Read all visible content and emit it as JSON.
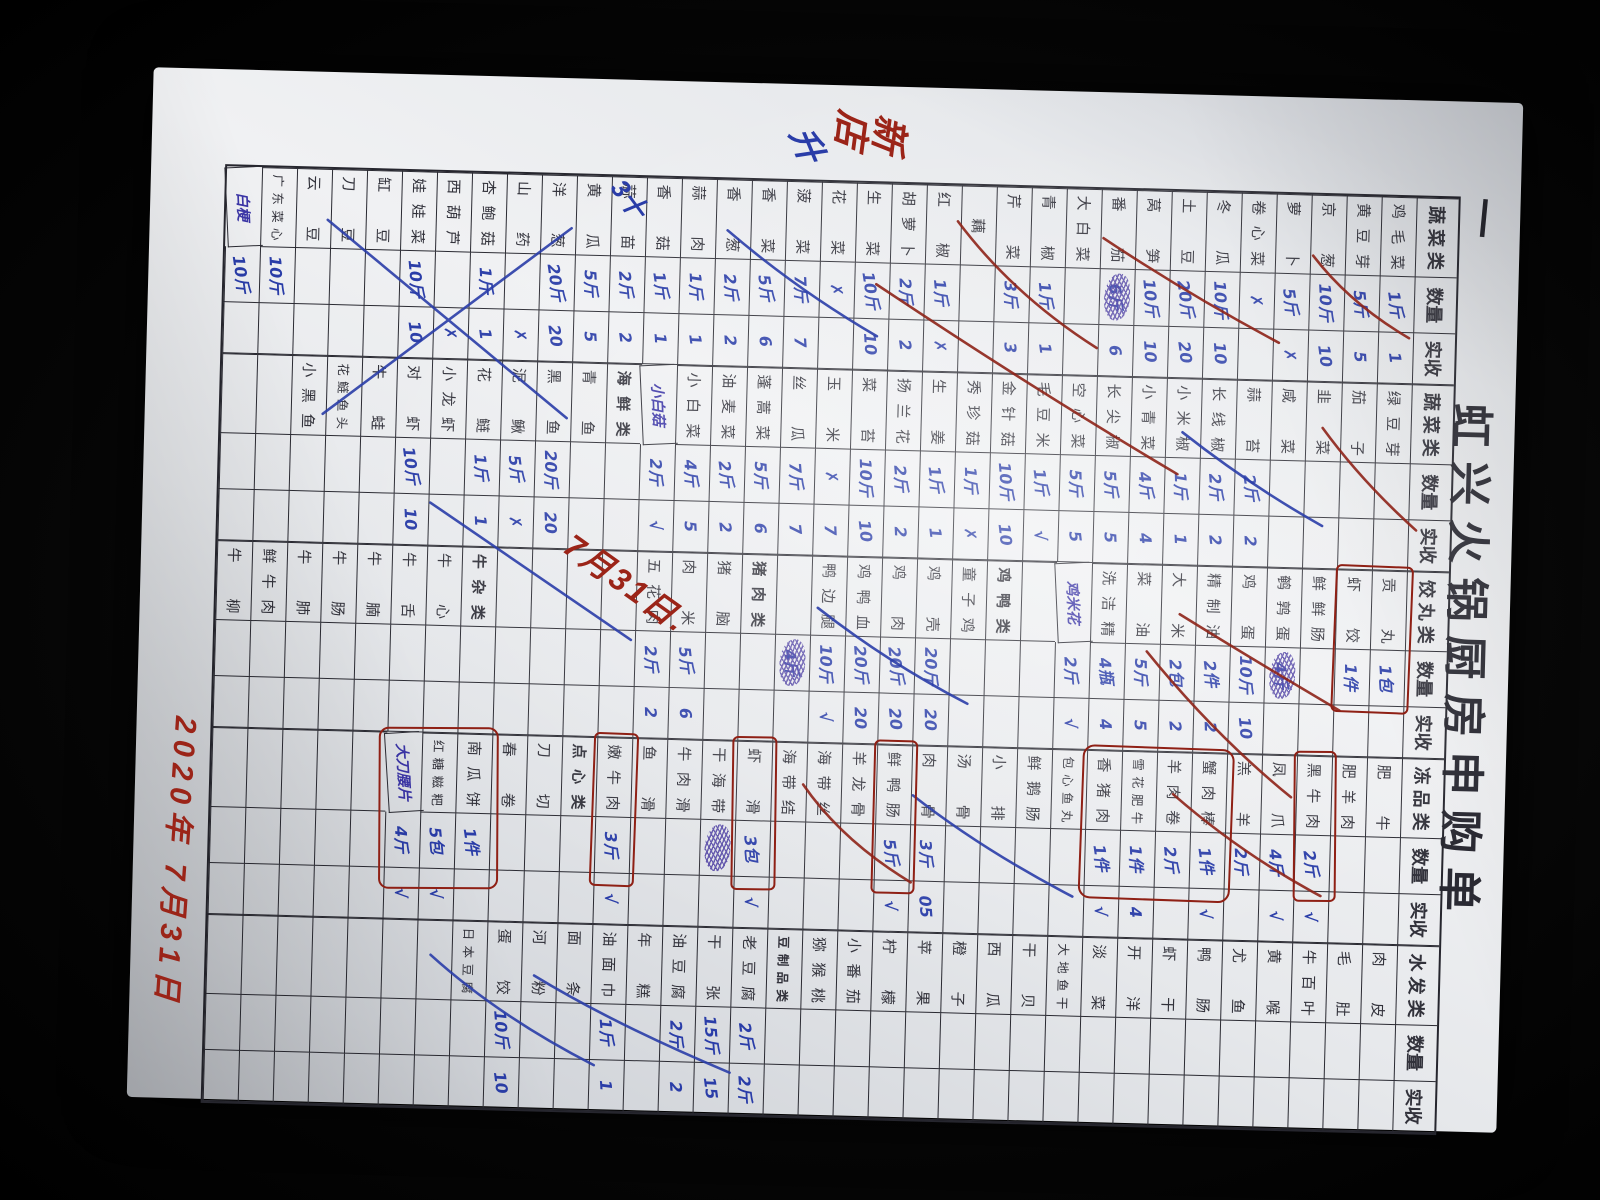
{
  "page": {
    "title": "虹兴火锅厨房申购单",
    "page_mark": "一"
  },
  "annotations": {
    "new_store_note": "新店",
    "date_diagonal": "7月31日.",
    "date_bottom": "2020年 7月31日",
    "pen_mark_1": "升",
    "pen_mark_2": "3十"
  },
  "colors": {
    "pen_blue": "#2a3da8",
    "pen_red": "#9b2418",
    "pen_purple": "#4a3aa0",
    "ink_grid": "#2a2a32",
    "paper": "#e7e9ec"
  },
  "table": {
    "qty_label": "数量",
    "recv_label": "实收",
    "groups": [
      {
        "category": "蔬菜类",
        "rows": [
          {
            "n": "鸡毛菜",
            "q": "1斤",
            "r": "1"
          },
          {
            "n": "黄豆芽",
            "q": "5斤",
            "r": "5"
          },
          {
            "n": "京葱",
            "q": "10斤",
            "r": "10"
          },
          {
            "n": "萝卜",
            "q": "5斤",
            "r": "✗"
          },
          {
            "n": "卷心菜",
            "q": "✗",
            "r": ""
          },
          {
            "n": "冬瓜",
            "q": "10斤",
            "r": "10"
          },
          {
            "n": "土豆",
            "q": "20斤",
            "r": "20"
          },
          {
            "n": "莴笋",
            "q": "10斤",
            "r": "10"
          },
          {
            "n": "番茄",
            "q": "6斤",
            "r": "6",
            "scribble": true
          },
          {
            "n": "大白菜",
            "q": "",
            "r": ""
          },
          {
            "n": "青椒",
            "q": "1斤",
            "r": "1"
          },
          {
            "n": "芹菜",
            "q": "3斤",
            "r": "3"
          },
          {
            "n": "藕",
            "q": "",
            "r": ""
          },
          {
            "n": "红椒",
            "q": "1斤",
            "r": "✗"
          },
          {
            "n": "胡萝卜",
            "q": "2斤",
            "r": "2"
          },
          {
            "n": "生菜",
            "q": "10斤",
            "r": "10"
          },
          {
            "n": "花菜",
            "q": "✗",
            "r": ""
          },
          {
            "n": "菠菜",
            "q": "7斤",
            "r": "7"
          },
          {
            "n": "香菜",
            "q": "5斤",
            "r": "6"
          },
          {
            "n": "香葱",
            "q": "2斤",
            "r": "2"
          },
          {
            "n": "蒜肉",
            "q": "1斤",
            "r": "1"
          },
          {
            "n": "香菇",
            "q": "1斤",
            "r": "1"
          },
          {
            "n": "蒜苗",
            "q": "2斤",
            "r": "2"
          },
          {
            "n": "黄瓜",
            "q": "5斤",
            "r": "5"
          },
          {
            "n": "洋葱",
            "q": "20斤",
            "r": "20"
          },
          {
            "n": "山药",
            "q": "",
            "r": "✗"
          },
          {
            "n": "杏鲍菇",
            "q": "1斤",
            "r": "1"
          },
          {
            "n": "西葫芦",
            "q": "",
            "r": "✗"
          },
          {
            "n": "娃娃菜",
            "q": "10斤",
            "r": "10"
          },
          {
            "n": "缸豆",
            "q": "",
            "r": ""
          },
          {
            "n": "刀豆",
            "q": "",
            "r": ""
          },
          {
            "n": "云豆",
            "q": "",
            "r": ""
          },
          {
            "n": "广东菜心",
            "q": "10斤",
            "r": ""
          },
          {
            "n": "白梗",
            "q": "10斤",
            "r": "",
            "hw": true
          }
        ]
      },
      {
        "category": "蔬菜类",
        "rows": [
          {
            "n": "绿豆芽",
            "q": "",
            "r": ""
          },
          {
            "n": "茄子",
            "q": "",
            "r": ""
          },
          {
            "n": "韭菜",
            "q": "",
            "r": ""
          },
          {
            "n": "咸菜",
            "q": "",
            "r": ""
          },
          {
            "n": "蒜苔",
            "q": "2斤",
            "r": "2"
          },
          {
            "n": "长线椒",
            "q": "2斤",
            "r": "2"
          },
          {
            "n": "小米椒",
            "q": "1斤",
            "r": "1"
          },
          {
            "n": "小青菜",
            "q": "4斤",
            "r": "4"
          },
          {
            "n": "长尖椒",
            "q": "5斤",
            "r": "5"
          },
          {
            "n": "空心菜",
            "q": "5斤",
            "r": "5"
          },
          {
            "n": "毛豆米",
            "q": "1斤",
            "r": "√"
          },
          {
            "n": "金针菇",
            "q": "10斤",
            "r": "10"
          },
          {
            "n": "秀珍菇",
            "q": "1斤",
            "r": "✗"
          },
          {
            "n": "生姜",
            "q": "1斤",
            "r": "1"
          },
          {
            "n": "扬兰花",
            "q": "2斤",
            "r": "2"
          },
          {
            "n": "菜苔",
            "q": "10斤",
            "r": "10"
          },
          {
            "n": "玉米",
            "q": "✗",
            "r": "7"
          },
          {
            "n": "丝瓜",
            "q": "7斤",
            "r": "7"
          },
          {
            "n": "蓬蒿菜",
            "q": "5斤",
            "r": "6"
          },
          {
            "n": "油麦菜",
            "q": "2斤",
            "r": "2"
          },
          {
            "n": "小白菜",
            "q": "4斤",
            "r": "5"
          },
          {
            "n": "小白菇",
            "q": "2斤",
            "r": "√",
            "hw": true
          },
          {
            "n": "海鲜类",
            "type": "section"
          },
          {
            "n": "青鱼",
            "q": "",
            "r": ""
          },
          {
            "n": "黑鱼",
            "q": "20斤",
            "r": "20"
          },
          {
            "n": "泥鳅",
            "q": "5斤",
            "r": "✗"
          },
          {
            "n": "花鲢",
            "q": "1斤",
            "r": "1"
          },
          {
            "n": "小龙虾",
            "q": "",
            "r": ""
          },
          {
            "n": "对虾",
            "q": "10斤",
            "r": "10"
          },
          {
            "n": "牛蛙",
            "q": "",
            "r": ""
          },
          {
            "n": "花鲢鱼头",
            "q": "",
            "r": ""
          },
          {
            "n": "小黑鱼",
            "q": "",
            "r": ""
          },
          {},
          {}
        ]
      },
      {
        "category": "饺丸类",
        "rows": [
          {
            "n": "贡丸",
            "q": "1包",
            "r": ""
          },
          {
            "n": "虾饺",
            "q": "1件",
            "r": ""
          },
          {
            "n": "鲜鲜肠",
            "q": "",
            "r": ""
          },
          {
            "n": "鹌鹑蛋",
            "q": "4斤",
            "r": "",
            "scribble": true
          },
          {
            "n": "鸡蛋",
            "q": "10斤",
            "r": "10"
          },
          {
            "n": "精制油",
            "q": "2件",
            "r": "2"
          },
          {
            "n": "大米",
            "q": "2包",
            "r": "2"
          },
          {
            "n": "菜油",
            "q": "5斤",
            "r": "5"
          },
          {
            "n": "洗洁精",
            "q": "4瓶",
            "r": "4"
          },
          {
            "n": "鸡米花",
            "q": "2斤",
            "r": "√",
            "hw": true
          },
          {},
          {
            "n": "鸡鸭类",
            "type": "section"
          },
          {
            "n": "童子鸡",
            "q": "",
            "r": ""
          },
          {
            "n": "鸡壳",
            "q": "20斤",
            "r": "20"
          },
          {
            "n": "鸡肉",
            "q": "20斤",
            "r": "20"
          },
          {
            "n": "鸡鸭血",
            "q": "20斤",
            "r": "20"
          },
          {
            "n": "鸭边腿",
            "q": "10斤",
            "r": "√"
          },
          {
            "n": "",
            "q": "4斤",
            "r": "",
            "scribble": true
          },
          {
            "n": "猪肉类",
            "type": "section"
          },
          {
            "n": "猪脑",
            "q": "",
            "r": ""
          },
          {
            "n": "肉米",
            "q": "5斤",
            "r": "6"
          },
          {
            "n": "五花肉",
            "q": "2斤",
            "r": "2"
          },
          {},
          {},
          {},
          {},
          {
            "n": "牛杂类",
            "type": "section"
          },
          {
            "n": "牛心",
            "q": "",
            "r": ""
          },
          {
            "n": "牛舌",
            "q": "",
            "r": ""
          },
          {
            "n": "牛腩",
            "q": "",
            "r": ""
          },
          {
            "n": "牛肠",
            "q": "",
            "r": ""
          },
          {
            "n": "牛肺",
            "q": "",
            "r": ""
          },
          {
            "n": "鲜牛肉",
            "q": "",
            "r": ""
          },
          {
            "n": "牛柳",
            "q": "",
            "r": ""
          }
        ]
      },
      {
        "category": "冻品类",
        "rows": [
          {
            "n": "肥牛",
            "q": "",
            "r": ""
          },
          {
            "n": "肥羊肉",
            "q": "",
            "r": ""
          },
          {
            "n": "黑牛肉",
            "q": "2斤",
            "r": "√"
          },
          {
            "n": "凤爪",
            "q": "4斤",
            "r": "√"
          },
          {
            "n": "羔羊",
            "q": "2斤",
            "r": ""
          },
          {
            "n": "蟹肉棒",
            "q": "1件",
            "r": "√"
          },
          {
            "n": "羊肉卷",
            "q": "2斤",
            "r": ""
          },
          {
            "n": "雪花肥牛",
            "q": "1件",
            "r": "4"
          },
          {
            "n": "香猪肉",
            "q": "1件",
            "r": "√"
          },
          {
            "n": "包心鱼丸",
            "q": "",
            "r": ""
          },
          {
            "n": "鲜鹅肠",
            "q": "",
            "r": ""
          },
          {
            "n": "小排",
            "q": "",
            "r": ""
          },
          {
            "n": "汤骨",
            "q": "",
            "r": ""
          },
          {
            "n": "肉骨",
            "q": "3斤",
            "r": "05"
          },
          {
            "n": "鲜鸭肠",
            "q": "5斤",
            "r": "√"
          },
          {
            "n": "羊龙骨",
            "q": "",
            "r": ""
          },
          {
            "n": "海带丝",
            "q": "",
            "r": ""
          },
          {
            "n": "海带结",
            "q": "",
            "r": ""
          },
          {
            "n": "虾滑",
            "q": "3包",
            "r": "√"
          },
          {
            "n": "干海带",
            "q": "",
            "r": "",
            "scribble": true
          },
          {
            "n": "牛肉滑",
            "q": "",
            "r": ""
          },
          {
            "n": "鱼滑",
            "q": "",
            "r": ""
          },
          {
            "n": "嫩牛肉",
            "q": "3斤",
            "r": "√"
          },
          {
            "n": "点心类",
            "type": "section"
          },
          {
            "n": "刀切",
            "q": "",
            "r": ""
          },
          {
            "n": "春卷",
            "q": "",
            "r": ""
          },
          {
            "n": "南瓜饼",
            "q": "1件",
            "r": ""
          },
          {
            "n": "红糖糍粑",
            "q": "5包",
            "r": "√"
          },
          {
            "n": "大刀腰片",
            "q": "4斤",
            "r": "√",
            "hw": true
          },
          {},
          {},
          {},
          {},
          {}
        ]
      },
      {
        "category": "水发类",
        "rows": [
          {
            "n": "肉皮",
            "q": "",
            "r": ""
          },
          {
            "n": "毛肚",
            "q": "",
            "r": ""
          },
          {
            "n": "牛百叶",
            "q": "",
            "r": ""
          },
          {
            "n": "黄喉",
            "q": "",
            "r": ""
          },
          {
            "n": "尤鱼",
            "q": "",
            "r": ""
          },
          {
            "n": "鸭肠",
            "q": "",
            "r": ""
          },
          {
            "n": "虾干",
            "q": "",
            "r": ""
          },
          {
            "n": "开洋",
            "q": "",
            "r": ""
          },
          {
            "n": "淡菜",
            "q": "",
            "r": ""
          },
          {
            "n": "大地鱼干",
            "q": "",
            "r": ""
          },
          {
            "n": "干贝",
            "q": "",
            "r": ""
          },
          {
            "n": "西瓜",
            "q": "",
            "r": ""
          },
          {
            "n": "橙子",
            "q": "",
            "r": ""
          },
          {
            "n": "苹果",
            "q": "",
            "r": ""
          },
          {
            "n": "柠檬",
            "q": "",
            "r": ""
          },
          {
            "n": "小番茄",
            "q": "",
            "r": ""
          },
          {
            "n": "猕猴桃",
            "q": "",
            "r": ""
          },
          {
            "n": "豆制品类",
            "type": "section"
          },
          {
            "n": "老豆腐",
            "q": "2斤",
            "r": "2斤"
          },
          {
            "n": "干张",
            "q": "15斤",
            "r": "15"
          },
          {
            "n": "油豆腐",
            "q": "2斤",
            "r": "2"
          },
          {
            "n": "年糕",
            "q": "",
            "r": ""
          },
          {
            "n": "油面巾",
            "q": "1斤",
            "r": "1"
          },
          {
            "n": "面条",
            "q": "",
            "r": ""
          },
          {
            "n": "河粉",
            "q": "",
            "r": ""
          },
          {
            "n": "蛋饺",
            "q": "10斤",
            "r": "10"
          },
          {
            "n": "日本豆腐",
            "q": "",
            "r": ""
          },
          {},
          {},
          {},
          {},
          {},
          {},
          {}
        ]
      }
    ]
  }
}
